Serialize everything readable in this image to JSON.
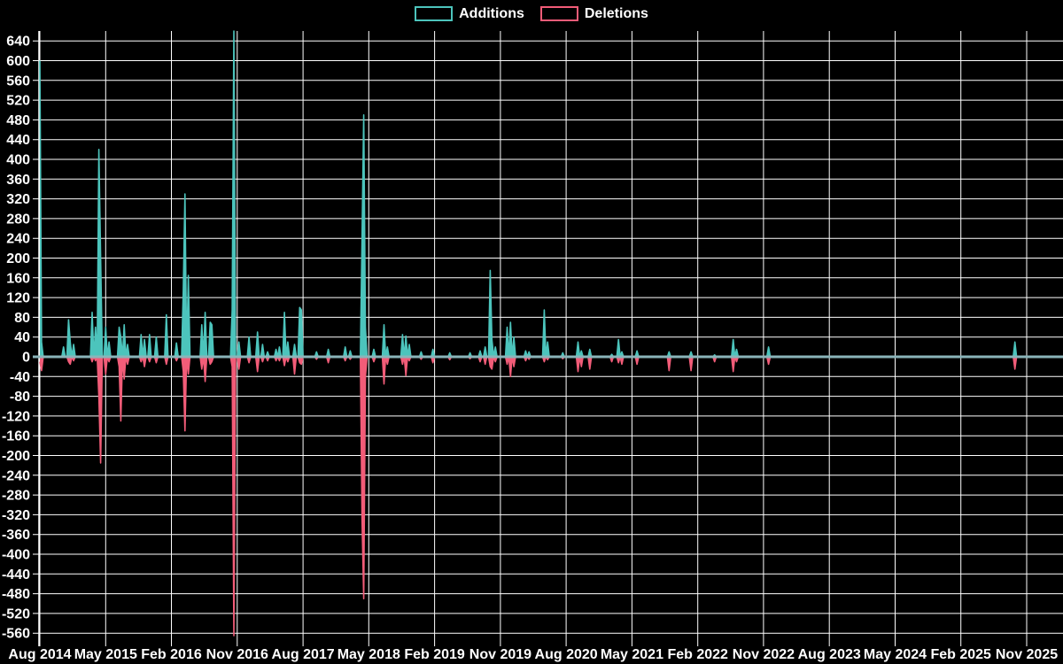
{
  "chart_data": {
    "type": "line",
    "title": "",
    "legend": [
      "Additions",
      "Deletions"
    ],
    "legend_position": "top-center",
    "grid": true,
    "x_tick_labels": [
      "Aug 2014",
      "May 2015",
      "Feb 2016",
      "Nov 2016",
      "Aug 2017",
      "May 2018",
      "Feb 2019",
      "Nov 2019",
      "Aug 2020",
      "May 2021",
      "Feb 2022",
      "Nov 2022",
      "Aug 2023",
      "May 2024",
      "Feb 2025",
      "Nov 2025"
    ],
    "y_ticks": [
      640,
      600,
      560,
      520,
      480,
      440,
      400,
      360,
      320,
      280,
      240,
      200,
      160,
      120,
      80,
      40,
      0,
      -40,
      -80,
      -120,
      -160,
      -200,
      -240,
      -280,
      -320,
      -360,
      -400,
      -440,
      -480,
      -520,
      -560
    ],
    "ylim": [
      -572,
      660
    ],
    "weeks_per_tick": 39,
    "total_weeks": 586,
    "series_note": "weekly additions (positive) and deletions (negative); weeks not listed in points are zero; points format [week_index, additions, deletions]",
    "points": [
      [
        0,
        600,
        -10
      ],
      [
        1,
        30,
        -28
      ],
      [
        14,
        20,
        0
      ],
      [
        17,
        75,
        -10
      ],
      [
        18,
        30,
        -15
      ],
      [
        20,
        25,
        -8
      ],
      [
        31,
        90,
        -10
      ],
      [
        33,
        60,
        -8
      ],
      [
        35,
        420,
        -80
      ],
      [
        36,
        200,
        -215
      ],
      [
        39,
        60,
        -35
      ],
      [
        41,
        30,
        -10
      ],
      [
        47,
        60,
        -20
      ],
      [
        48,
        40,
        -130
      ],
      [
        50,
        65,
        -45
      ],
      [
        52,
        25,
        -15
      ],
      [
        60,
        45,
        -10
      ],
      [
        62,
        35,
        -20
      ],
      [
        65,
        45,
        -10
      ],
      [
        69,
        40,
        -12
      ],
      [
        75,
        85,
        -15
      ],
      [
        81,
        28,
        -8
      ],
      [
        85,
        135,
        -30
      ],
      [
        86,
        330,
        -150
      ],
      [
        88,
        165,
        -35
      ],
      [
        96,
        65,
        -25
      ],
      [
        98,
        90,
        -50
      ],
      [
        101,
        70,
        -15
      ],
      [
        102,
        65,
        -10
      ],
      [
        114,
        95,
        -20
      ],
      [
        115,
        660,
        -565
      ],
      [
        118,
        30,
        -25
      ],
      [
        124,
        40,
        -12
      ],
      [
        129,
        50,
        -30
      ],
      [
        132,
        25,
        -10
      ],
      [
        135,
        10,
        -8
      ],
      [
        140,
        15,
        -8
      ],
      [
        142,
        20,
        -8
      ],
      [
        145,
        90,
        -18
      ],
      [
        147,
        30,
        -10
      ],
      [
        151,
        25,
        -35
      ],
      [
        154,
        100,
        -12
      ],
      [
        155,
        95,
        -15
      ],
      [
        164,
        10,
        -5
      ],
      [
        171,
        15,
        -12
      ],
      [
        181,
        20,
        -8
      ],
      [
        184,
        12,
        -5
      ],
      [
        191,
        240,
        -330
      ],
      [
        192,
        490,
        -490
      ],
      [
        193,
        60,
        -40
      ],
      [
        198,
        15,
        -10
      ],
      [
        204,
        65,
        -55
      ],
      [
        206,
        20,
        -15
      ],
      [
        215,
        45,
        -15
      ],
      [
        217,
        42,
        -38
      ],
      [
        219,
        25,
        -8
      ],
      [
        226,
        10,
        -5
      ],
      [
        233,
        15,
        -12
      ],
      [
        243,
        8,
        -6
      ],
      [
        255,
        8,
        -4
      ],
      [
        261,
        12,
        -10
      ],
      [
        264,
        20,
        -15
      ],
      [
        267,
        175,
        -20
      ],
      [
        268,
        35,
        -25
      ],
      [
        270,
        20,
        -10
      ],
      [
        277,
        60,
        -15
      ],
      [
        279,
        70,
        -40
      ],
      [
        281,
        40,
        -20
      ],
      [
        288,
        12,
        -8
      ],
      [
        290,
        10,
        -5
      ],
      [
        299,
        95,
        -10
      ],
      [
        301,
        30,
        -6
      ],
      [
        310,
        8,
        -4
      ],
      [
        319,
        30,
        -30
      ],
      [
        321,
        12,
        -20
      ],
      [
        326,
        15,
        -25
      ],
      [
        339,
        5,
        -10
      ],
      [
        343,
        35,
        -12
      ],
      [
        345,
        10,
        -15
      ],
      [
        354,
        12,
        -15
      ],
      [
        373,
        10,
        -28
      ],
      [
        386,
        10,
        -28
      ],
      [
        400,
        4,
        -10
      ],
      [
        411,
        35,
        -30
      ],
      [
        413,
        15,
        -10
      ],
      [
        432,
        20,
        -15
      ],
      [
        578,
        30,
        -25
      ]
    ],
    "colors": {
      "additions": "#4cc4bc",
      "deletions": "#f25c78",
      "zero_line": "#8ab4b9",
      "grid": "#ffffff",
      "text": "#ffffff",
      "background": "#000000"
    }
  }
}
